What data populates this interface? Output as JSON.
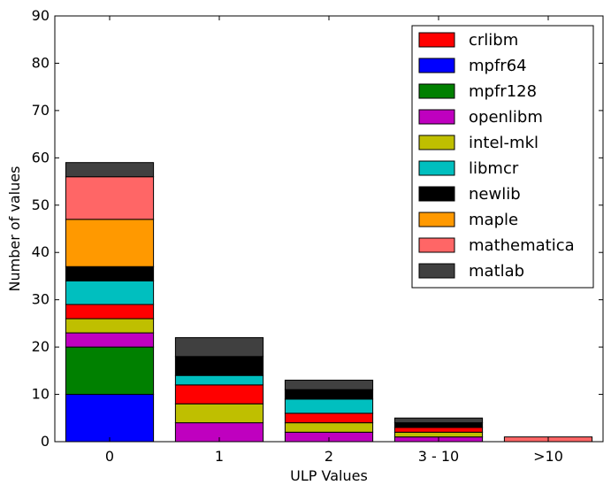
{
  "chart_data": {
    "type": "bar",
    "stacked": true,
    "xlabel": "ULP Values",
    "ylabel": "Number of values",
    "ylim": [
      0,
      90
    ],
    "yticks": [
      0,
      10,
      20,
      30,
      40,
      50,
      60,
      70,
      80,
      90
    ],
    "categories": [
      "0",
      "1",
      "2",
      "3 - 10",
      ">10"
    ],
    "legend_position": "top-right",
    "grid": false,
    "series": [
      {
        "name": "crlibm",
        "color": "#ff0000",
        "values": [
          3,
          4,
          2,
          1,
          0
        ]
      },
      {
        "name": "mpfr64",
        "color": "#0000ff",
        "values": [
          10,
          0,
          0,
          0,
          0
        ]
      },
      {
        "name": "mpfr128",
        "color": "#008000",
        "values": [
          10,
          0,
          0,
          0,
          0
        ]
      },
      {
        "name": "openlibm",
        "color": "#bf00bf",
        "values": [
          3,
          4,
          2,
          1,
          0
        ]
      },
      {
        "name": "intel-mkl",
        "color": "#bfbf00",
        "values": [
          3,
          4,
          2,
          1,
          0
        ]
      },
      {
        "name": "libmcr",
        "color": "#00bfbf",
        "values": [
          5,
          2,
          3,
          0,
          0
        ]
      },
      {
        "name": "newlib",
        "color": "#000000",
        "values": [
          3,
          4,
          2,
          1,
          0
        ]
      },
      {
        "name": "maple",
        "color": "#ff9900",
        "values": [
          10,
          0,
          0,
          0,
          0
        ]
      },
      {
        "name": "mathematica",
        "color": "#ff6666",
        "values": [
          9,
          0,
          0,
          0,
          1
        ]
      },
      {
        "name": "matlab",
        "color": "#404040",
        "values": [
          3,
          4,
          2,
          1,
          0
        ]
      }
    ],
    "stack_order": [
      "mpfr64",
      "mpfr128",
      "openlibm",
      "intel-mkl",
      "crlibm",
      "libmcr",
      "newlib",
      "maple",
      "mathematica",
      "matlab"
    ]
  }
}
